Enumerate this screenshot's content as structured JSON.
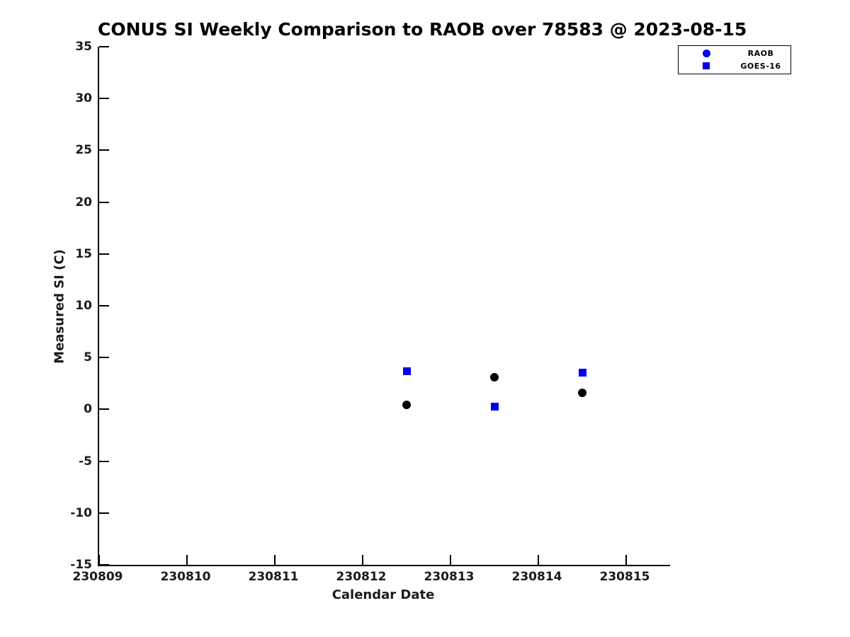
{
  "title": "CONUS SI Weekly Comparison to RAOB over 78583 @ 2023-08-15",
  "colors": {
    "blue": "#0000ee",
    "black": "#000000",
    "background": "#ffffff",
    "axis": "#000000"
  },
  "chart_data": {
    "type": "scatter",
    "title": "CONUS SI Weekly Comparison to RAOB over 78583 @ 2023-08-15",
    "xlabel": "Calendar Date",
    "ylabel": "Measured SI (C)",
    "xlim": [
      230809,
      230815.5
    ],
    "ylim": [
      -15,
      35
    ],
    "xticks": [
      230809,
      230810,
      230811,
      230812,
      230813,
      230814,
      230815
    ],
    "yticks": [
      35,
      30,
      25,
      20,
      15,
      10,
      5,
      0,
      -5,
      -10,
      -15
    ],
    "grid": false,
    "legend_position": "top-right",
    "series": [
      {
        "name": "RAOB",
        "marker": "circle",
        "color": "#000000",
        "legend_color": "#0000ee",
        "points": [
          {
            "x": 230812.5,
            "y": 0.45
          },
          {
            "x": 230813.5,
            "y": 3.1
          },
          {
            "x": 230814.5,
            "y": 1.6
          }
        ]
      },
      {
        "name": "GOES-16",
        "marker": "square",
        "color": "#0000ee",
        "legend_color": "#0000ee",
        "points": [
          {
            "x": 230812.5,
            "y": 3.7
          },
          {
            "x": 230813.5,
            "y": 0.25
          },
          {
            "x": 230814.5,
            "y": 3.55
          }
        ]
      }
    ]
  }
}
